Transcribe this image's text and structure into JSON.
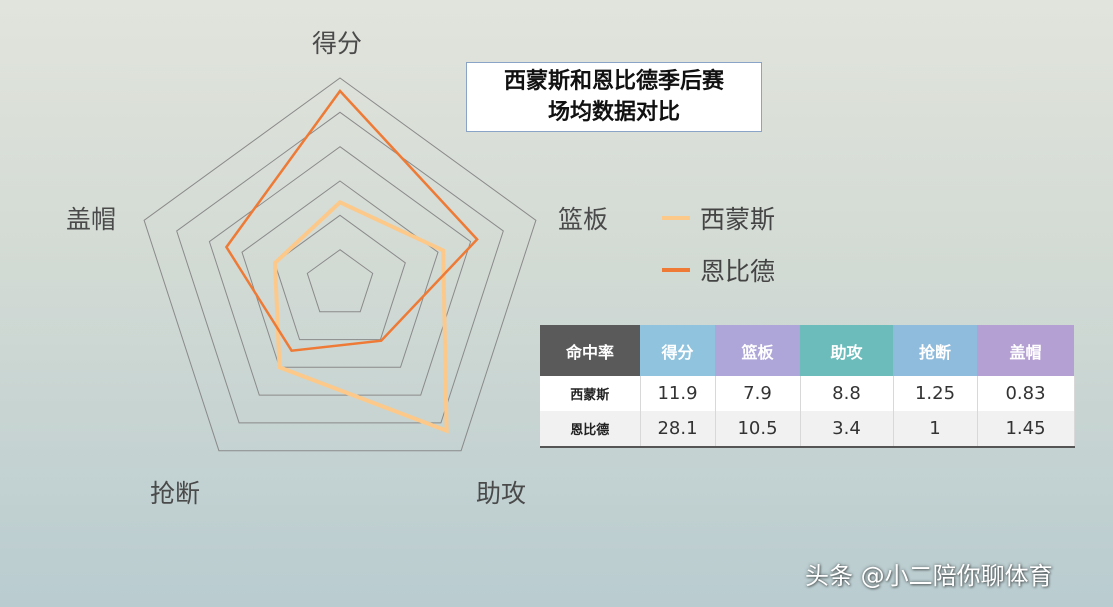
{
  "chart_data": {
    "type": "radar",
    "title_line1": "西蒙斯和恩比德季后赛",
    "title_line2": "场均数据对比",
    "axes": [
      "得分",
      "篮板",
      "助攻",
      "抢断",
      "盖帽"
    ],
    "axis_max": [
      30,
      15,
      10,
      2.5,
      2.5
    ],
    "rings": 6,
    "series": [
      {
        "name": "西蒙斯",
        "color": "#fcc98a",
        "values": [
          11.9,
          7.9,
          8.8,
          1.25,
          0.83
        ]
      },
      {
        "name": "恩比德",
        "color": "#ee7a35",
        "values": [
          28.1,
          10.5,
          3.4,
          1,
          1.45
        ]
      }
    ]
  },
  "table": {
    "corner": "命中率",
    "headers": [
      {
        "label": "得分",
        "color": "#8fc3de"
      },
      {
        "label": "篮板",
        "color": "#aea6d8"
      },
      {
        "label": "助攻",
        "color": "#6cbcbc"
      },
      {
        "label": "抢断",
        "color": "#8fbbdc"
      },
      {
        "label": "盖帽",
        "color": "#b4a0d2"
      }
    ],
    "corner_color": "#5a5a5a",
    "rows": [
      {
        "name": "西蒙斯",
        "values": [
          "11.9",
          "7.9",
          "8.8",
          "1.25",
          "0.83"
        ]
      },
      {
        "name": "恩比德",
        "values": [
          "28.1",
          "10.5",
          "3.4",
          "1",
          "1.45"
        ]
      }
    ]
  },
  "watermark": "头条 @小二陪你聊体育"
}
